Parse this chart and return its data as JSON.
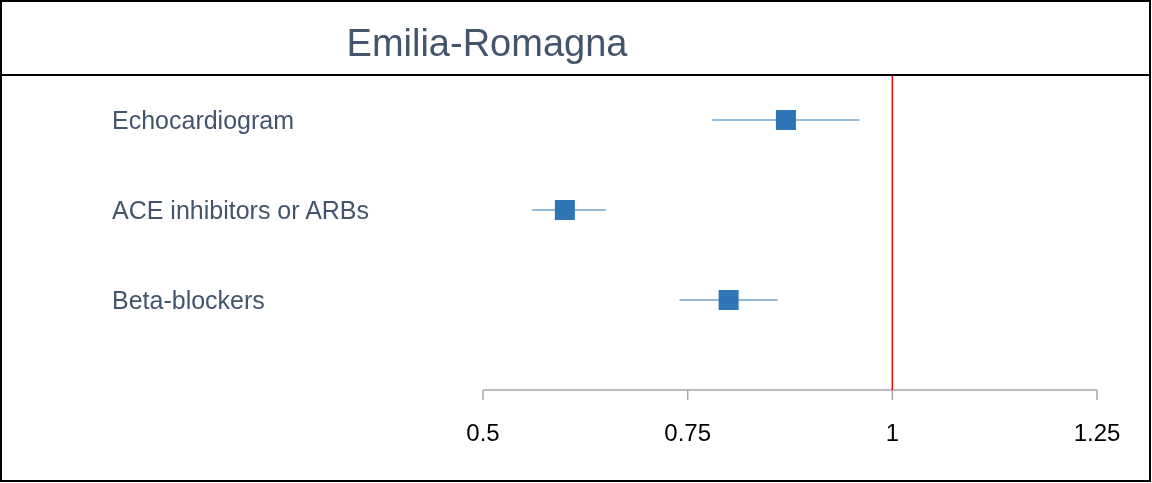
{
  "chart_data": {
    "type": "scatter",
    "orientation": "horizontal",
    "title": "Emilia-Romagna",
    "categories": [
      "Echocardiogram",
      "ACE inhibitors or ARBs",
      "Beta-blockers"
    ],
    "values": [
      0.87,
      0.6,
      0.8
    ],
    "errors": [
      [
        0.78,
        0.96
      ],
      [
        0.56,
        0.65
      ],
      [
        0.74,
        0.86
      ]
    ],
    "color": "#2e75b6",
    "marker": "square",
    "xlim": [
      0.5,
      1.25
    ],
    "xticks": [
      0.5,
      0.75,
      1,
      1.25
    ],
    "ref_lines": [
      {
        "axis": "x",
        "value": 1,
        "color": "#ff0000"
      }
    ],
    "grid": false
  }
}
